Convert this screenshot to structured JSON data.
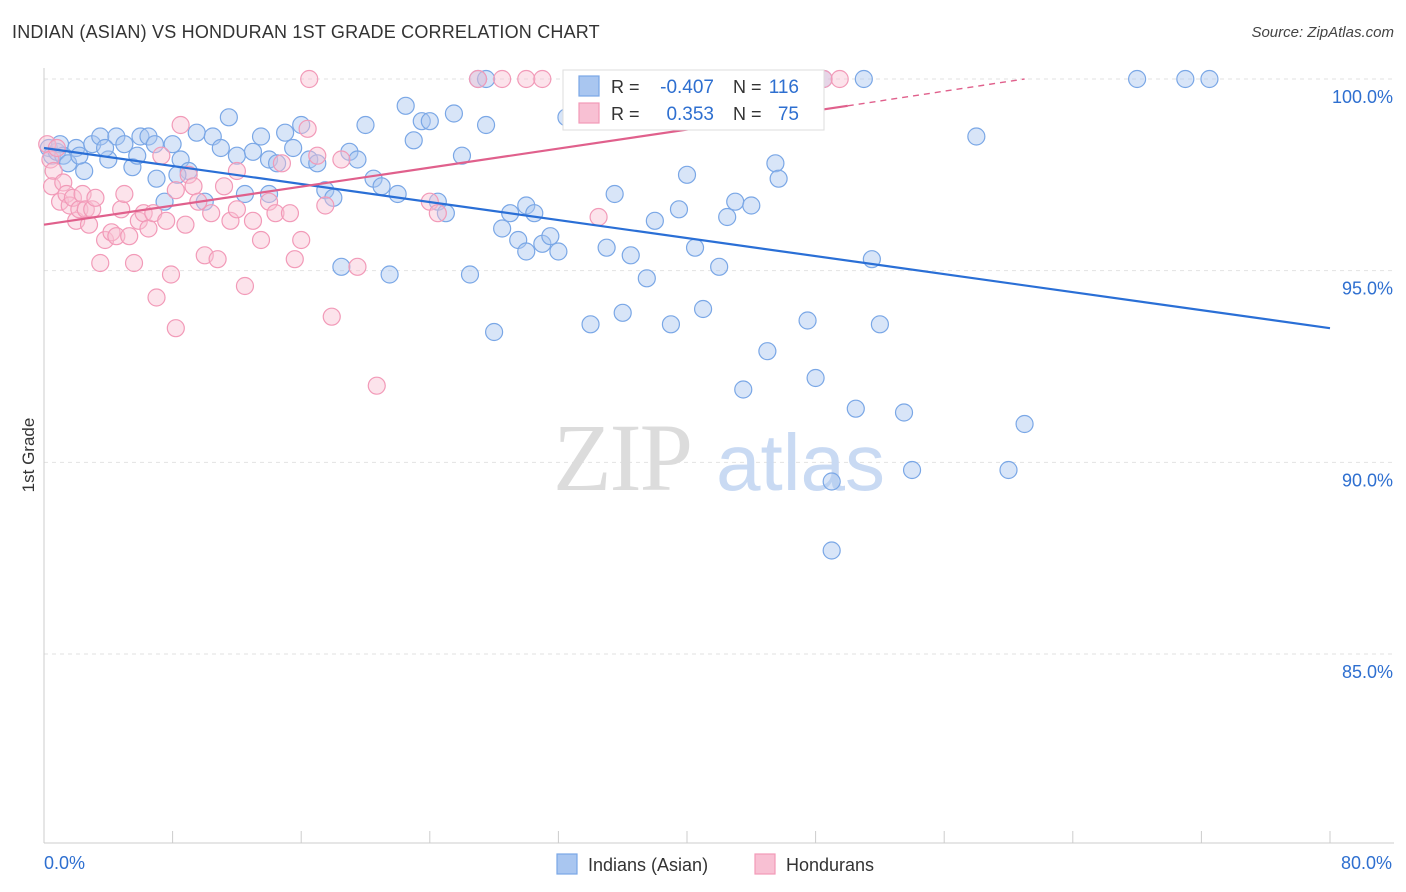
{
  "chart_data": {
    "type": "scatter",
    "title": "INDIAN (ASIAN) VS HONDURAN 1ST GRADE CORRELATION CHART",
    "source": "Source: ZipAtlas.com",
    "xlabel": "",
    "ylabel": "1st Grade",
    "xlim": [
      0,
      80
    ],
    "ylim": [
      80.5,
      100.8
    ],
    "x_tick_labels": [
      "0.0%",
      "80.0%"
    ],
    "y_ticks": [
      85,
      90,
      95,
      100
    ],
    "y_tick_labels": [
      "85.0%",
      "90.0%",
      "95.0%",
      "100.0%"
    ],
    "grid": true,
    "watermark": "ZIPatlas",
    "legend_box": {
      "rows": [
        {
          "r_label": "R =",
          "r_value": "-0.407",
          "n_label": "N =",
          "n_value": "116"
        },
        {
          "r_label": "R =",
          "r_value": "0.353",
          "n_label": "N =",
          "n_value": "75"
        }
      ]
    },
    "series": [
      {
        "name": "Indians (Asian)",
        "color": "#7aa7e6",
        "fill": "#a9c6f0",
        "line_color": "#2a6fd6",
        "r": -0.407,
        "n": 116,
        "trend": {
          "x": [
            0,
            80
          ],
          "y": [
            98.2,
            93.5
          ]
        },
        "points": [
          [
            0.3,
            98.2
          ],
          [
            0.5,
            98.0
          ],
          [
            0.8,
            98.1
          ],
          [
            1.0,
            98.3
          ],
          [
            1.2,
            98.0
          ],
          [
            1.5,
            97.8
          ],
          [
            2.0,
            98.2
          ],
          [
            2.5,
            97.6
          ],
          [
            3.0,
            98.3
          ],
          [
            3.5,
            98.5
          ],
          [
            4.0,
            97.9
          ],
          [
            4.5,
            98.5
          ],
          [
            5.0,
            98.3
          ],
          [
            5.5,
            97.7
          ],
          [
            6.0,
            98.5
          ],
          [
            6.5,
            98.5
          ],
          [
            7.0,
            97.4
          ],
          [
            7.5,
            96.8
          ],
          [
            8.0,
            98.3
          ],
          [
            8.5,
            97.9
          ],
          [
            9.0,
            97.6
          ],
          [
            9.5,
            98.6
          ],
          [
            10.0,
            96.8
          ],
          [
            10.5,
            98.5
          ],
          [
            11.0,
            98.2
          ],
          [
            11.5,
            99.0
          ],
          [
            12.0,
            98.0
          ],
          [
            12.5,
            97.0
          ],
          [
            13.0,
            98.1
          ],
          [
            13.5,
            98.5
          ],
          [
            14.0,
            97.9
          ],
          [
            14.5,
            97.8
          ],
          [
            15.0,
            98.6
          ],
          [
            15.5,
            98.2
          ],
          [
            16.0,
            98.8
          ],
          [
            16.5,
            97.9
          ],
          [
            17.0,
            97.8
          ],
          [
            17.5,
            97.1
          ],
          [
            18.0,
            96.9
          ],
          [
            18.5,
            95.1
          ],
          [
            19.0,
            98.1
          ],
          [
            19.5,
            97.9
          ],
          [
            20.0,
            98.8
          ],
          [
            20.5,
            97.4
          ],
          [
            21.0,
            97.2
          ],
          [
            21.5,
            94.9
          ],
          [
            22.0,
            97.0
          ],
          [
            22.5,
            99.3
          ],
          [
            23.0,
            98.4
          ],
          [
            23.5,
            98.9
          ],
          [
            24.0,
            98.9
          ],
          [
            24.5,
            96.8
          ],
          [
            25.0,
            96.5
          ],
          [
            25.5,
            99.1
          ],
          [
            26.0,
            98.0
          ],
          [
            26.5,
            94.9
          ],
          [
            27.0,
            100.0
          ],
          [
            27.5,
            98.8
          ],
          [
            28.0,
            93.4
          ],
          [
            28.5,
            96.1
          ],
          [
            29.0,
            96.5
          ],
          [
            29.5,
            95.8
          ],
          [
            30.0,
            96.7
          ],
          [
            30.5,
            96.5
          ],
          [
            31.0,
            95.7
          ],
          [
            31.5,
            95.9
          ],
          [
            32.0,
            95.5
          ],
          [
            32.5,
            99.0
          ],
          [
            33.0,
            99.1
          ],
          [
            33.5,
            99.0
          ],
          [
            34.0,
            93.6
          ],
          [
            34.5,
            100.0
          ],
          [
            35.0,
            95.6
          ],
          [
            35.5,
            97.0
          ],
          [
            36.0,
            93.9
          ],
          [
            36.5,
            95.4
          ],
          [
            37.5,
            94.8
          ],
          [
            38.0,
            96.3
          ],
          [
            39.0,
            93.6
          ],
          [
            39.5,
            96.6
          ],
          [
            40.0,
            97.5
          ],
          [
            40.5,
            95.6
          ],
          [
            41.0,
            94.0
          ],
          [
            42.0,
            95.1
          ],
          [
            42.5,
            96.4
          ],
          [
            43.0,
            96.8
          ],
          [
            43.5,
            91.9
          ],
          [
            44.0,
            96.7
          ],
          [
            45.0,
            92.9
          ],
          [
            45.5,
            97.8
          ],
          [
            45.7,
            97.4
          ],
          [
            47.5,
            93.7
          ],
          [
            48.0,
            92.2
          ],
          [
            48.5,
            100.0
          ],
          [
            49.0,
            89.5
          ],
          [
            50.5,
            91.4
          ],
          [
            51.0,
            100.0
          ],
          [
            51.5,
            95.3
          ],
          [
            52.0,
            93.6
          ],
          [
            53.5,
            91.3
          ],
          [
            54.0,
            89.8
          ],
          [
            58.0,
            98.5
          ],
          [
            60.0,
            89.8
          ],
          [
            61.0,
            91.0
          ],
          [
            68.0,
            100.0
          ],
          [
            71.0,
            100.0
          ],
          [
            72.5,
            100.0
          ],
          [
            49.0,
            87.7
          ],
          [
            27.5,
            100.0
          ],
          [
            30.0,
            95.5
          ],
          [
            46.5,
            100.0
          ],
          [
            14.0,
            97.0
          ],
          [
            8.3,
            97.5
          ],
          [
            3.8,
            98.2
          ],
          [
            5.8,
            98.0
          ],
          [
            2.2,
            98.0
          ],
          [
            6.9,
            98.3
          ]
        ]
      },
      {
        "name": "Hondurans",
        "color": "#f29ab8",
        "fill": "#f8c0d3",
        "line_color": "#e0608c",
        "r": 0.353,
        "n": 75,
        "trend": {
          "x": [
            0,
            50
          ],
          "y": [
            96.2,
            99.3
          ]
        },
        "trend_dashed": {
          "x": [
            50,
            61
          ],
          "y": [
            99.3,
            100.0
          ]
        },
        "points": [
          [
            0.2,
            98.3
          ],
          [
            0.4,
            97.9
          ],
          [
            0.6,
            97.6
          ],
          [
            0.8,
            98.2
          ],
          [
            0.5,
            97.2
          ],
          [
            1.0,
            96.8
          ],
          [
            1.2,
            97.3
          ],
          [
            1.4,
            97.0
          ],
          [
            1.6,
            96.7
          ],
          [
            1.8,
            96.9
          ],
          [
            2.0,
            96.3
          ],
          [
            2.2,
            96.6
          ],
          [
            2.4,
            97.0
          ],
          [
            2.6,
            96.6
          ],
          [
            2.8,
            96.2
          ],
          [
            3.0,
            96.6
          ],
          [
            3.2,
            96.9
          ],
          [
            3.5,
            95.2
          ],
          [
            3.8,
            95.8
          ],
          [
            4.2,
            96.0
          ],
          [
            4.5,
            95.9
          ],
          [
            4.8,
            96.6
          ],
          [
            5.0,
            97.0
          ],
          [
            5.3,
            95.9
          ],
          [
            5.6,
            95.2
          ],
          [
            5.9,
            96.3
          ],
          [
            6.2,
            96.5
          ],
          [
            6.5,
            96.1
          ],
          [
            6.8,
            96.5
          ],
          [
            7.0,
            94.3
          ],
          [
            7.3,
            98.0
          ],
          [
            7.6,
            96.3
          ],
          [
            7.9,
            94.9
          ],
          [
            8.2,
            97.1
          ],
          [
            8.5,
            98.8
          ],
          [
            8.8,
            96.2
          ],
          [
            9.0,
            97.5
          ],
          [
            9.3,
            97.2
          ],
          [
            9.6,
            96.8
          ],
          [
            10.0,
            95.4
          ],
          [
            10.4,
            96.5
          ],
          [
            10.8,
            95.3
          ],
          [
            11.2,
            97.2
          ],
          [
            11.6,
            96.3
          ],
          [
            12.0,
            97.6
          ],
          [
            12.5,
            94.6
          ],
          [
            13.0,
            96.3
          ],
          [
            13.5,
            95.8
          ],
          [
            14.0,
            96.8
          ],
          [
            14.4,
            96.5
          ],
          [
            14.8,
            97.8
          ],
          [
            15.3,
            96.5
          ],
          [
            15.6,
            95.3
          ],
          [
            16.0,
            95.8
          ],
          [
            16.4,
            98.7
          ],
          [
            17.0,
            98.0
          ],
          [
            17.5,
            96.7
          ],
          [
            17.9,
            93.8
          ],
          [
            18.5,
            97.9
          ],
          [
            19.5,
            95.1
          ],
          [
            20.7,
            92.0
          ],
          [
            24.0,
            96.8
          ],
          [
            24.5,
            96.5
          ],
          [
            27.0,
            100.0
          ],
          [
            28.5,
            100.0
          ],
          [
            30.0,
            100.0
          ],
          [
            31.0,
            100.0
          ],
          [
            33.0,
            100.0
          ],
          [
            34.5,
            96.4
          ],
          [
            39.5,
            100.0
          ],
          [
            48.5,
            100.0
          ],
          [
            49.5,
            100.0
          ],
          [
            16.5,
            100.0
          ],
          [
            12.0,
            96.6
          ],
          [
            8.2,
            93.5
          ]
        ]
      }
    ]
  }
}
